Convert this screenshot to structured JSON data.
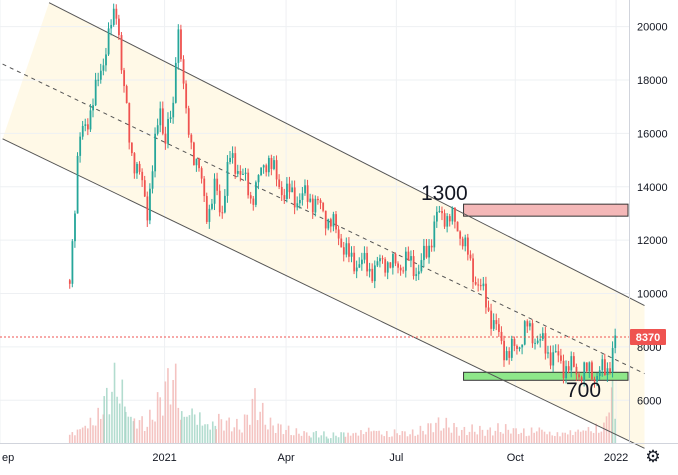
{
  "chart_data": {
    "type": "candlestick",
    "y_axis": {
      "ticks": [
        6000,
        8000,
        10000,
        12000,
        14000,
        16000,
        18000,
        20000
      ],
      "ylim": [
        4400,
        21000
      ],
      "position": "right"
    },
    "x_axis": {
      "ticks": [
        "ep",
        "2021",
        "Apr",
        "Jul",
        "Oct",
        "2022"
      ]
    },
    "last_price": {
      "value": 8370,
      "label": "8370",
      "color": "#ef5350"
    },
    "channel": {
      "upper": [
        [
          "ep+19",
          20900
        ],
        [
          "2022+11",
          9550
        ]
      ],
      "middle": [
        [
          "ep+1",
          18600
        ],
        [
          "2022+11",
          7000
        ]
      ],
      "lower": [
        [
          "ep+1",
          15800
        ],
        [
          "2022+11",
          4200
        ]
      ]
    },
    "zones": [
      {
        "name": "resistance",
        "y_range": [
          12900,
          13350
        ],
        "color": "#f4b8b8"
      },
      {
        "name": "support",
        "y_range": [
          6750,
          7050
        ],
        "color": "#8ee78a"
      }
    ],
    "annotations": [
      {
        "text": "1300",
        "near_value": 13300
      },
      {
        "text": "700",
        "near_value": 6700
      }
    ],
    "series_points": [
      [
        8000,
        10500
      ],
      [
        9000,
        15500
      ],
      [
        11000,
        17500
      ],
      [
        12000,
        19000
      ],
      [
        13500,
        20800
      ],
      [
        14000,
        18500
      ],
      [
        15000,
        15500
      ],
      [
        16000,
        14500
      ],
      [
        17000,
        13200
      ],
      [
        18500,
        17000
      ],
      [
        19000,
        15800
      ],
      [
        20000,
        16800
      ],
      [
        20500,
        20500
      ],
      [
        21000,
        18500
      ],
      [
        21500,
        16500
      ],
      [
        23000,
        14500
      ],
      [
        24000,
        13000
      ],
      [
        25000,
        14000
      ],
      [
        25500,
        12900
      ],
      [
        26500,
        15000
      ],
      [
        27500,
        14800
      ],
      [
        29000,
        13600
      ],
      [
        30000,
        14300
      ],
      [
        31000,
        15200
      ],
      [
        32000,
        14200
      ],
      [
        33000,
        13800
      ],
      [
        34000,
        13600
      ],
      [
        36000,
        13600
      ],
      [
        38000,
        12800
      ],
      [
        39500,
        12000
      ],
      [
        40500,
        11200
      ],
      [
        41500,
        11200
      ],
      [
        42500,
        11000
      ],
      [
        43500,
        10900
      ],
      [
        44500,
        11300
      ],
      [
        45500,
        11000
      ],
      [
        47000,
        11200
      ],
      [
        48500,
        10900
      ],
      [
        49500,
        11600
      ],
      [
        50500,
        12800
      ],
      [
        51500,
        13000
      ],
      [
        52500,
        12700
      ],
      [
        53500,
        12200
      ],
      [
        54500,
        11000
      ],
      [
        55500,
        10300
      ],
      [
        56500,
        9500
      ],
      [
        57500,
        8600
      ],
      [
        58000,
        8200
      ],
      [
        59000,
        7700
      ],
      [
        60000,
        8100
      ],
      [
        61000,
        8700
      ],
      [
        62000,
        8400
      ],
      [
        63000,
        8000
      ],
      [
        64000,
        7700
      ],
      [
        65000,
        7400
      ],
      [
        66000,
        7200
      ],
      [
        67000,
        7100
      ],
      [
        68000,
        7000
      ],
      [
        68500,
        7200
      ],
      [
        69000,
        6900
      ],
      [
        70000,
        7100
      ],
      [
        70500,
        7300
      ],
      [
        71500,
        8370
      ]
    ],
    "volume": [
      [
        8000,
        5
      ],
      [
        9500,
        9
      ],
      [
        11000,
        14
      ],
      [
        12000,
        20
      ],
      [
        13500,
        32
      ],
      [
        14500,
        18
      ],
      [
        15500,
        12
      ],
      [
        17000,
        10
      ],
      [
        18500,
        22
      ],
      [
        20000,
        35
      ],
      [
        21000,
        15
      ],
      [
        22500,
        18
      ],
      [
        24000,
        10
      ],
      [
        25000,
        12
      ],
      [
        26500,
        10
      ],
      [
        28000,
        8
      ],
      [
        29500,
        22
      ],
      [
        31000,
        10
      ],
      [
        32500,
        8
      ],
      [
        34000,
        6
      ],
      [
        36000,
        5
      ],
      [
        38000,
        4
      ],
      [
        40000,
        5
      ],
      [
        41500,
        6
      ],
      [
        43000,
        8
      ],
      [
        44500,
        5
      ],
      [
        46000,
        6
      ],
      [
        47500,
        5
      ],
      [
        49000,
        7
      ],
      [
        50500,
        10
      ],
      [
        52000,
        9
      ],
      [
        53500,
        6
      ],
      [
        55000,
        7
      ],
      [
        56500,
        6
      ],
      [
        58000,
        8
      ],
      [
        59500,
        7
      ],
      [
        61000,
        6
      ],
      [
        62500,
        8
      ],
      [
        64000,
        5
      ],
      [
        65500,
        6
      ],
      [
        67000,
        7
      ],
      [
        68500,
        8
      ],
      [
        70000,
        9
      ],
      [
        71000,
        30
      ],
      [
        71500,
        12
      ]
    ]
  },
  "ui": {
    "settings_icon": "gear-icon",
    "settings_glyph": "⚙"
  }
}
